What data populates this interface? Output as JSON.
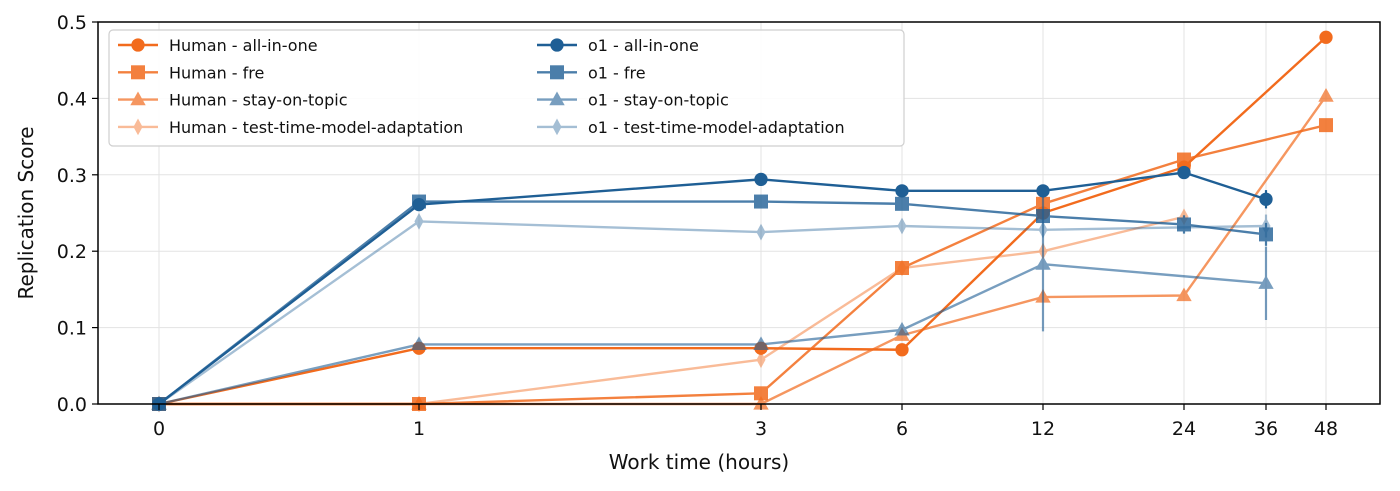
{
  "chart_data": {
    "type": "line",
    "xlabel": "Work time (hours)",
    "ylabel": "Replication Score",
    "x": [
      0,
      1,
      3,
      6,
      12,
      24,
      36,
      48
    ],
    "x_tick_labels": [
      "0",
      "1",
      "3",
      "6",
      "12",
      "24",
      "36",
      "48"
    ],
    "x_scale": "nonlinear (tick positions spaced as printed)",
    "ylim": [
      0,
      0.5
    ],
    "y_ticks": [
      "0.0",
      "0.1",
      "0.2",
      "0.3",
      "0.4",
      "0.5"
    ],
    "grid": true,
    "legend_placement": "top-left",
    "series": [
      {
        "name": "Human - all-in-one",
        "marker": "circle",
        "color": "#f26b1d",
        "opacity": 1.0,
        "values": [
          0,
          0.073,
          0.073,
          0.071,
          0.25,
          0.31,
          null,
          0.48
        ],
        "err": [
          0,
          0,
          0,
          0,
          0,
          0,
          0,
          0
        ]
      },
      {
        "name": "Human - fre",
        "marker": "square",
        "color": "#f26b1d",
        "opacity": 0.85,
        "values": [
          0,
          0,
          0.014,
          0.178,
          0.262,
          0.32,
          null,
          0.365
        ],
        "err": [
          0,
          0,
          0,
          0,
          0,
          0,
          0,
          0
        ]
      },
      {
        "name": "Human - stay-on-topic",
        "marker": "triangle",
        "color": "#f26b1d",
        "opacity": 0.7,
        "values": [
          0,
          0,
          0,
          0.09,
          0.14,
          0.142,
          null,
          0.403
        ],
        "err": [
          0,
          0,
          0,
          0,
          0,
          0,
          0,
          0
        ]
      },
      {
        "name": "Human - test-time-model-adaptation",
        "marker": "diamond",
        "color": "#f26b1d",
        "opacity": 0.45,
        "values": [
          0,
          0,
          0.058,
          0.178,
          0.2,
          0.245,
          null,
          null
        ],
        "err": [
          0,
          0,
          0,
          0,
          0,
          0,
          0,
          0
        ]
      },
      {
        "name": "o1  - all-in-one",
        "marker": "circle",
        "color": "#1f5f95",
        "opacity": 1.0,
        "values": [
          0,
          0.261,
          0.294,
          0.279,
          0.279,
          0.303,
          0.268,
          null
        ],
        "err": [
          0,
          0,
          0,
          0,
          0,
          0,
          0.012,
          0
        ]
      },
      {
        "name": "o1  - fre",
        "marker": "square",
        "color": "#1f5f95",
        "opacity": 0.8,
        "values": [
          0,
          0.265,
          0.265,
          0.262,
          0.246,
          0.235,
          0.222,
          null
        ],
        "err": [
          0,
          0,
          0,
          0,
          0,
          0.012,
          0.015,
          0
        ]
      },
      {
        "name": "o1  - stay-on-topic",
        "marker": "triangle",
        "color": "#1f5f95",
        "opacity": 0.6,
        "values": [
          0,
          0.078,
          0.078,
          0.097,
          0.183,
          null,
          0.158,
          null
        ],
        "err": [
          0,
          0,
          0,
          0,
          0.088,
          0,
          0.048,
          0
        ]
      },
      {
        "name": "o1  - test-time-model-adaptation",
        "marker": "diamond",
        "color": "#1f5f95",
        "opacity": 0.4,
        "values": [
          0,
          0.239,
          0.225,
          0.233,
          0.228,
          null,
          0.233,
          null
        ],
        "err": [
          0,
          0,
          0,
          0,
          0,
          0,
          0.015,
          0
        ]
      }
    ]
  }
}
